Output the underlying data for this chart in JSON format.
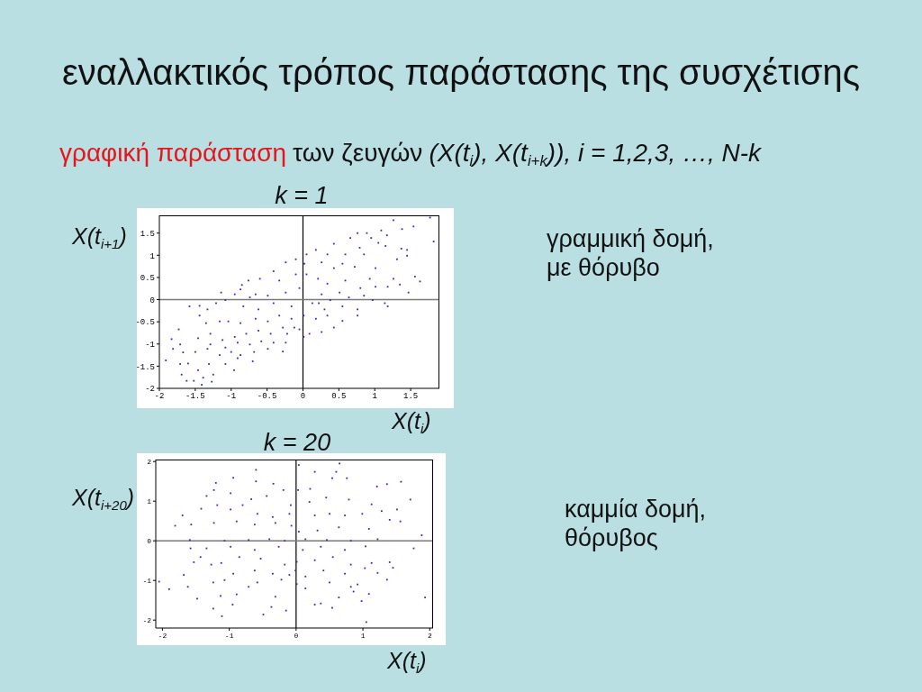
{
  "chart_data": [
    {
      "type": "other",
      "title": "εναλλακτικός τρόπος παράστασης της συσχέτισης",
      "annotations": [
        "γραφική παράσταση",
        "των ζευγών",
        "(X(t$_{i}$), X(t$_{i+k}$)), i = 1,2,3, …, N-k"
      ]
    },
    {
      "type": "scatter",
      "title": "k = 1",
      "xlabel": "X(t$_{i}$)",
      "ylabel": "X(t$_{i+1}$)",
      "annotations": [
        "γραμμική δομή, με θόρυβο"
      ],
      "color": "#2b2bd0",
      "marker": "square",
      "xlim": [
        -2,
        1.9
      ],
      "ylim": [
        -2,
        1.9
      ],
      "xticks": [
        -2,
        -1.5,
        -1,
        -0.5,
        0,
        0.5,
        1,
        1.5
      ],
      "yticks": [
        -2,
        -1.5,
        -1,
        -0.5,
        0,
        0.5,
        1,
        1.5
      ],
      "ref_lines": [
        {
          "axis": "x",
          "value": 0,
          "color": "#000000"
        },
        {
          "axis": "y",
          "value": 0,
          "color": "#7a7a7a"
        }
      ],
      "x": [
        1.77,
        1.26,
        1.54,
        1.38,
        1.09,
        1.17,
        1.82,
        0.76,
        0.89,
        0.66,
        0.95,
        0.43,
        0.79,
        1.05,
        1.15,
        1.37,
        1.45,
        0.18,
        0.05,
        0.34,
        0.59,
        0.85,
        1.45,
        1.31,
        -0.1,
        -0.24,
        0.02,
        0.26,
        0.55,
        0.72,
        1.01,
        0.43,
        -0.41,
        -0.33,
        -0.1,
        0.05,
        -0.6,
        -0.76,
        -0.85,
        0.21,
        0.34,
        0.59,
        0.93,
        1.26,
        1.56,
        1.63,
        1.01,
        1.18,
        1.35,
        1.47,
        0.8,
        0.51,
        0.26,
        -0.05,
        -0.24,
        -0.49,
        -0.66,
        -0.95,
        -1.14,
        -1.08,
        -1.21,
        -1.33,
        -1.58,
        -1.44,
        0.97,
        1.14,
        1.18,
        0.76,
        0.55,
        0.3,
        0.13,
        -0.16,
        -0.41,
        -0.62,
        -0.83,
        0.76,
        0.55,
        0.34,
        0.18,
        0.01,
        -0.16,
        -0.33,
        -0.49,
        -0.66,
        -0.87,
        -1.04,
        -1.16,
        -1.35,
        -1.44,
        0.43,
        0.26,
        0.09,
        0.01,
        -0.12,
        -0.28,
        -0.45,
        -0.62,
        -0.79,
        -0.95,
        -1.12,
        -1.29,
        -1.73,
        -0.24,
        -0.41,
        -0.58,
        -0.74,
        -0.91,
        -1.08,
        -1.29,
        -1.46,
        -1.71,
        -1.81,
        -1.83,
        -0.28,
        -0.49,
        -0.68,
        -0.87,
        -1,
        -1.16,
        -1.33,
        -1.5,
        -1.67,
        -0.7,
        -0.91,
        -1.08,
        -1.31,
        -1.71,
        -1.6,
        -0.96,
        -1.46,
        -1.25,
        -1.62,
        -1.39,
        -1.52,
        -1.41,
        -1.27,
        -1.91,
        -1.69,
        -0.22,
        -0.05,
        0.22,
        0.38,
        0.64,
        0.85,
        -0.74,
        -0.87
      ],
      "values": [
        1.85,
        1.79,
        1.65,
        1.59,
        1.56,
        1.45,
        1.31,
        1.5,
        1.5,
        1.39,
        1.39,
        1.26,
        1.17,
        1.28,
        1.21,
        1.15,
        1.12,
        1.12,
        1.02,
        1.02,
        1.02,
        1.02,
        0.99,
        0.91,
        0.91,
        0.84,
        0.81,
        0.84,
        0.81,
        0.74,
        0.71,
        0.71,
        0.64,
        0.43,
        0.57,
        0.57,
        0.47,
        0.43,
        0.33,
        0.47,
        0.36,
        0.43,
        0.47,
        0.47,
        0.52,
        0.41,
        0.29,
        0.29,
        0.34,
        0.16,
        0.26,
        0.16,
        0.12,
        0.26,
        0.16,
        0.09,
        0.12,
        0.12,
        0.16,
        -0.01,
        -0.08,
        -0.22,
        -0.15,
        -0.14,
        -0.01,
        -0.08,
        -0.15,
        -0.22,
        -0.15,
        -0.22,
        -0.08,
        -0.15,
        -0.08,
        -0.22,
        -0.15,
        -0.36,
        -0.48,
        -0.36,
        -0.43,
        -0.36,
        -0.43,
        -0.36,
        -0.49,
        -0.43,
        -0.53,
        -0.49,
        -0.49,
        -0.53,
        -0.36,
        -0.63,
        -0.73,
        -0.77,
        -0.84,
        -0.63,
        -0.63,
        -0.77,
        -0.7,
        -0.77,
        -0.84,
        -0.91,
        -0.77,
        -0.67,
        -0.97,
        -0.97,
        -0.94,
        -1.01,
        -0.97,
        -1.08,
        -1.01,
        -0.87,
        -1.01,
        -1.11,
        -0.89,
        -1.17,
        -1.11,
        -1.18,
        -1.25,
        -1.18,
        -1.25,
        -1.11,
        -1.18,
        -1.19,
        -1.39,
        -1.32,
        -1.45,
        -1.45,
        -1.45,
        -1.44,
        -1.59,
        -1.59,
        -1.69,
        -1.83,
        -1.76,
        -1.83,
        -1.92,
        -1.85,
        -1.37,
        -1.69,
        -0.77,
        -0.67,
        -0.08,
        -0.01,
        0.05,
        0.09,
        0.05,
        0.23
      ]
    },
    {
      "type": "scatter",
      "title": "k = 20",
      "xlabel": "X(t$_{i}$)",
      "ylabel": "X(t$_{i+20}$)",
      "annotations": [
        "καμμία δομή, θόρυβος"
      ],
      "color": "#2b2bd0",
      "marker": "square",
      "xlim": [
        -2.1,
        2.05
      ],
      "ylim": [
        -2.2,
        2.05
      ],
      "xticks": [
        -2,
        -1,
        0,
        1,
        2
      ],
      "yticks": [
        -2,
        -1,
        0,
        1,
        2
      ],
      "ref_lines": [
        {
          "axis": "x",
          "value": 0,
          "color": "#000000"
        },
        {
          "axis": "y",
          "value": 0,
          "color": "#7a7a7a"
        }
      ],
      "x": [
        0.04,
        0.65,
        0.6,
        -0.6,
        0.28,
        0.54,
        0.76,
        1.57,
        1.36,
        1.21,
        -1.2,
        -0.94,
        -0.6,
        -0.34,
        0.03,
        0.21,
        -0.19,
        -1.23,
        -1.34,
        -0.98,
        -0.44,
        0.45,
        0.79,
        1.71,
        1.13,
        0.2,
        -0.08,
        -0.67,
        -0.8,
        -1.18,
        -1.42,
        -1.7,
        -1.81,
        -0.98,
        -0.58,
        -0.35,
        -0.1,
        0.28,
        0.5,
        0.73,
        0.99,
        1.28,
        1.51,
        1.56,
        1.4,
        -1.57,
        -1.23,
        -0.89,
        -0.62,
        -0.31,
        -0.07,
        0.04,
        0.32,
        0.64,
        1.09,
        1.88,
        -1.59,
        -1.07,
        -0.71,
        -0.4,
        -0.17,
        0.14,
        0.46,
        0.82,
        1.22,
        -1.34,
        -0.98,
        -0.62,
        -0.26,
        0.1,
        0.37,
        0.73,
        1.04,
        1.76,
        -1.58,
        -1.43,
        -1.12,
        -0.85,
        -0.53,
        -0.17,
        0.01,
        0.28,
        0.55,
        0.82,
        1.13,
        1.4,
        1.45,
        -1.53,
        -1.27,
        -0.94,
        -0.62,
        -0.35,
        -0.1,
        0.14,
        0.41,
        0.73,
        1.03,
        1.22,
        1.36,
        -1.68,
        -2.05,
        -1.62,
        -1.9,
        -1.24,
        -1.07,
        -0.71,
        -0.58,
        -0.22,
        0.01,
        0.14,
        0.5,
        0.82,
        0.92,
        0.64,
        1.09,
        0.86,
        -1.48,
        -1.13,
        -0.89,
        -0.31,
        0.28,
        0.37,
        0.98,
        1.93,
        -0.95,
        -0.49,
        -0.37,
        -0.15,
        0.54,
        -1.24,
        -1.11,
        1.05,
        -0.01
      ],
      "values": [
        1.91,
        1.95,
        1.74,
        1.79,
        1.74,
        1.58,
        1.58,
        1.49,
        1.43,
        1.37,
        1.46,
        1.59,
        1.5,
        1.44,
        1.28,
        1.31,
        1.28,
        1.28,
        1.13,
        1.2,
        1.13,
        1.09,
        1.04,
        1.04,
        0.92,
        0.98,
        0.9,
        1.05,
        0.9,
        0.9,
        0.81,
        0.64,
        0.38,
        0.79,
        0.68,
        0.6,
        0.68,
        0.64,
        0.68,
        0.64,
        0.68,
        0.75,
        0.79,
        0.49,
        0.53,
        0.41,
        0.45,
        0.49,
        0.41,
        0.45,
        0.38,
        0.23,
        0.26,
        0.34,
        0.3,
        0.14,
        0.02,
        0,
        0.02,
        0.04,
        0,
        0.04,
        0.02,
        0,
        0.04,
        -0.19,
        -0.15,
        -0.23,
        -0.15,
        -0.23,
        -0.15,
        -0.23,
        -0.14,
        -0.19,
        -0.19,
        -0.41,
        -0.56,
        -0.41,
        -0.45,
        -0.6,
        -0.53,
        -0.49,
        -0.41,
        -0.6,
        -0.56,
        -0.54,
        -0.68,
        -0.54,
        -0.6,
        -0.83,
        -0.75,
        -0.83,
        -0.86,
        -0.9,
        -0.75,
        -0.83,
        -0.69,
        -0.81,
        -0.98,
        -0.86,
        -1.03,
        -1.16,
        -1.22,
        -1.05,
        -0.99,
        -1.16,
        -1.05,
        -0.98,
        -1.09,
        -1.2,
        -1.05,
        -1.16,
        -1.1,
        -1.43,
        -1.34,
        -1.28,
        -1.46,
        -1.39,
        -1.35,
        -1.41,
        -1.61,
        -1.58,
        -1.52,
        -1.43,
        -1.61,
        -1.86,
        -1.67,
        -1.76,
        -1.69,
        -1.71,
        -1.9,
        -2.05,
        -0.75
      ]
    }
  ]
}
